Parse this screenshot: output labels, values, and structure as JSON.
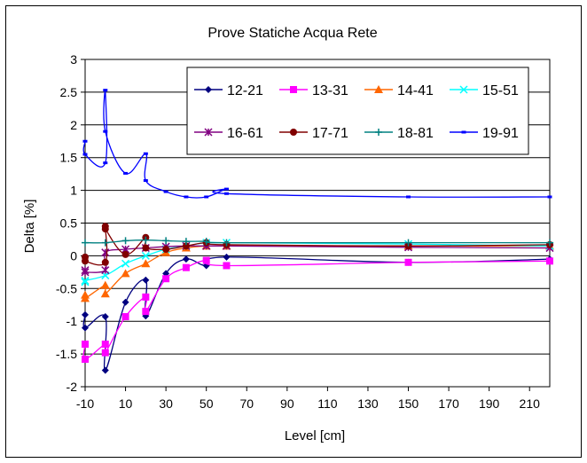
{
  "chart_data": {
    "type": "line",
    "title": "Prove Statiche Acqua Rete",
    "xlabel": "Level [cm]",
    "ylabel": "Delta [%]",
    "xlim": [
      -10,
      220
    ],
    "ylim": [
      -2,
      3
    ],
    "xticks": [
      "-10",
      "10",
      "30",
      "50",
      "70",
      "90",
      "110",
      "130",
      "150",
      "170",
      "190",
      "210"
    ],
    "yticks": [
      "-2",
      "-1.5",
      "-1",
      "-0.5",
      "0",
      "0.5",
      "1",
      "1.5",
      "2",
      "2.5",
      "3"
    ],
    "grid": "horizontal",
    "legend": "top-right",
    "series": [
      {
        "name": "12-21",
        "color": "#000080",
        "marker": "diamond",
        "x": [
          -10,
          -10,
          0,
          0,
          10,
          20,
          20,
          30,
          40,
          50,
          60,
          150,
          220
        ],
        "y": [
          -0.9,
          -1.1,
          -0.93,
          -1.75,
          -0.71,
          -0.37,
          -0.92,
          -0.27,
          -0.05,
          -0.15,
          -0.02,
          -0.1,
          -0.05
        ]
      },
      {
        "name": "13-31",
        "color": "#ff00ff",
        "marker": "square",
        "x": [
          -10,
          -10,
          0,
          0,
          10,
          20,
          20,
          30,
          40,
          50,
          60,
          150,
          220
        ],
        "y": [
          -1.35,
          -1.58,
          -1.35,
          -1.48,
          -0.93,
          -0.63,
          -0.85,
          -0.35,
          -0.18,
          -0.07,
          -0.15,
          -0.1,
          -0.08
        ]
      },
      {
        "name": "14-41",
        "color": "#ff6600",
        "marker": "triangle",
        "x": [
          -10,
          -10,
          0,
          0,
          10,
          20,
          30,
          40,
          50,
          60,
          150,
          220
        ],
        "y": [
          -0.6,
          -0.65,
          -0.45,
          -0.58,
          -0.27,
          -0.12,
          0.05,
          0.12,
          0.15,
          0.15,
          0.15,
          0.15
        ]
      },
      {
        "name": "15-51",
        "color": "#00ffff",
        "marker": "x",
        "x": [
          -10,
          -10,
          0,
          10,
          20,
          30,
          40,
          50,
          60,
          150,
          220
        ],
        "y": [
          -0.4,
          -0.38,
          -0.3,
          -0.12,
          0.0,
          0.1,
          0.15,
          0.2,
          0.2,
          0.18,
          0.15
        ]
      },
      {
        "name": "16-61",
        "color": "#800080",
        "marker": "star",
        "x": [
          -10,
          -10,
          0,
          0,
          10,
          20,
          30,
          40,
          50,
          60,
          150,
          220
        ],
        "y": [
          -0.22,
          -0.25,
          -0.22,
          0.05,
          0.1,
          0.12,
          0.14,
          0.15,
          0.15,
          0.15,
          0.13,
          0.12
        ]
      },
      {
        "name": "17-71",
        "color": "#800000",
        "marker": "circle",
        "x": [
          -10,
          -10,
          0,
          0,
          0,
          10,
          20,
          20,
          30,
          40,
          50,
          60,
          150,
          220
        ],
        "y": [
          -0.02,
          -0.08,
          -0.1,
          0.45,
          0.41,
          0.02,
          0.28,
          0.12,
          0.1,
          0.15,
          0.2,
          0.17,
          0.15,
          0.17
        ]
      },
      {
        "name": "18-81",
        "color": "#008080",
        "marker": "plus",
        "x": [
          -10,
          0,
          10,
          20,
          30,
          40,
          50,
          60,
          150,
          220
        ],
        "y": [
          0.2,
          0.2,
          0.23,
          0.24,
          0.23,
          0.22,
          0.22,
          0.2,
          0.2,
          0.2
        ]
      },
      {
        "name": "19-91",
        "color": "#0000ff",
        "marker": "dash",
        "x": [
          -10,
          -10,
          0,
          0,
          0,
          10,
          20,
          20,
          30,
          40,
          50,
          60,
          60,
          150,
          220
        ],
        "y": [
          1.75,
          1.55,
          1.42,
          2.53,
          1.9,
          1.26,
          1.56,
          1.15,
          0.98,
          0.9,
          0.9,
          1.02,
          0.95,
          0.9,
          0.9
        ]
      }
    ]
  }
}
